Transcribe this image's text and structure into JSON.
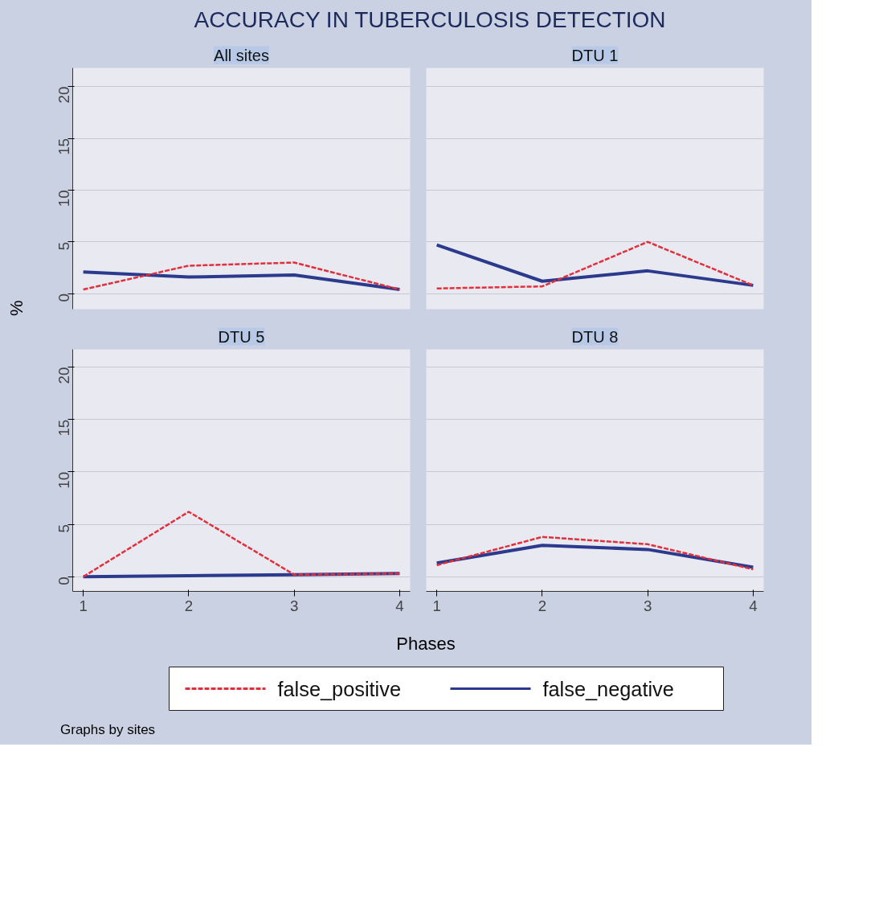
{
  "chart_data": [
    {
      "type": "line",
      "title": "ACCURACY IN TUBERCULOSIS DETECTION",
      "subtitle": "All sites",
      "ylabel": "%",
      "xlabel": "Phases",
      "annotations": [
        "Graphs by sites"
      ],
      "legend": "bottom",
      "x": [
        1,
        2,
        3,
        4
      ],
      "xlim": [
        0.9,
        4.1
      ],
      "xticks": [
        1,
        2,
        3,
        4
      ],
      "ylim": [
        -1.5,
        21.8
      ],
      "yticks": [
        0,
        5,
        10,
        15,
        20
      ],
      "grid": "y",
      "tick_labels": "y",
      "series": [
        {
          "name": "false_positive",
          "color": "#e0303c",
          "line_style": "dashed",
          "values": [
            0.4,
            2.7,
            3.0,
            0.4
          ]
        },
        {
          "name": "false_negative",
          "color": "#2b3a8c",
          "line_style": "solid",
          "values": [
            2.1,
            1.6,
            1.8,
            0.4
          ]
        }
      ]
    },
    {
      "type": "line",
      "subtitle": "DTU 1",
      "x": [
        1,
        2,
        3,
        4
      ],
      "xlim": [
        0.9,
        4.1
      ],
      "xticks": [
        1,
        2,
        3,
        4
      ],
      "ylim": [
        -1.5,
        21.8
      ],
      "yticks": [
        0,
        5,
        10,
        15,
        20
      ],
      "grid": "y",
      "tick_labels": false,
      "series": [
        {
          "color": "#e0303c",
          "line_style": "dashed",
          "values": [
            0.5,
            0.7,
            5.0,
            0.8
          ]
        },
        {
          "color": "#2b3a8c",
          "line_style": "solid",
          "values": [
            4.7,
            1.2,
            2.2,
            0.8
          ]
        }
      ]
    },
    {
      "type": "line",
      "subtitle": "DTU 5",
      "x": [
        1,
        2,
        3,
        4
      ],
      "xlim": [
        0.9,
        4.1
      ],
      "xticks": [
        1,
        2,
        3,
        4
      ],
      "ylim": [
        -1.4,
        21.7
      ],
      "yticks": [
        0,
        5,
        10,
        15,
        20
      ],
      "grid": "y",
      "series": [
        {
          "color": "#e0303c",
          "line_style": "dashed",
          "values": [
            0,
            6.2,
            0.2,
            0.3
          ]
        },
        {
          "color": "#2b3a8c",
          "line_style": "solid",
          "values": [
            0,
            0.1,
            0.2,
            0.3
          ]
        }
      ]
    },
    {
      "type": "line",
      "subtitle": "DTU 8",
      "x": [
        1,
        2,
        3,
        4
      ],
      "xlim": [
        0.9,
        4.1
      ],
      "xticks": [
        1,
        2,
        3,
        4
      ],
      "ylim": [
        -1.4,
        21.7
      ],
      "yticks": [
        0,
        5,
        10,
        15,
        20
      ],
      "grid": "y",
      "tick_labels": "x",
      "series": [
        {
          "color": "#e0303c",
          "line_style": "dashed",
          "values": [
            1.1,
            3.8,
            3.1,
            0.7
          ]
        },
        {
          "color": "#2b3a8c",
          "line_style": "solid",
          "values": [
            1.3,
            3.0,
            2.6,
            0.9
          ]
        }
      ]
    }
  ]
}
